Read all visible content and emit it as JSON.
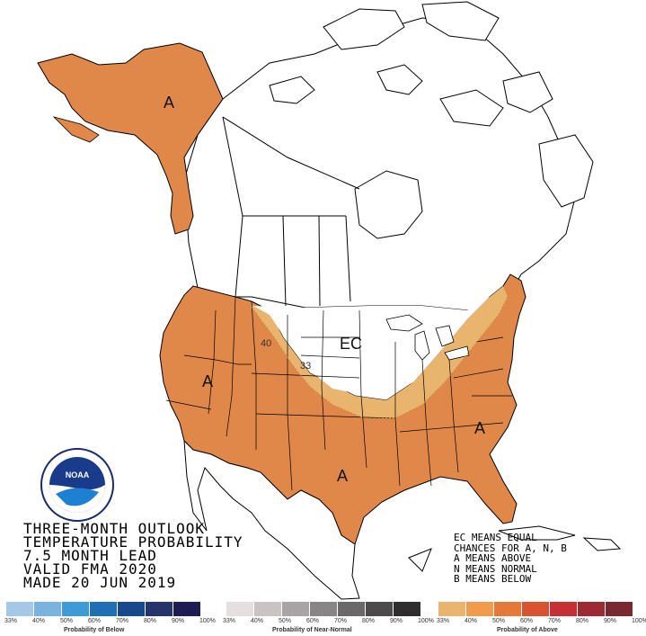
{
  "title_lines": [
    "THREE-MONTH OUTLOOK",
    "TEMPERATURE PROBABILITY",
    "7.5 MONTH LEAD",
    "VALID FMA 2020",
    "MADE 20 JUN 2019"
  ],
  "legend_lines": [
    "EC MEANS EQUAL",
    "CHANCES FOR A, N, B",
    "A MEANS ABOVE",
    "N MEANS NORMAL",
    "B MEANS BELOW"
  ],
  "map_labels": {
    "alaska": "A",
    "west": "A",
    "south": "A",
    "southeast": "A",
    "central": "EC",
    "contour_40": "40",
    "contour_33": "33"
  },
  "logo_text": "NOAA",
  "colorbars": [
    {
      "name": "Probability of Below",
      "ticks": [
        "33%",
        "40%",
        "50%",
        "60%",
        "70%",
        "80%",
        "90%",
        "100%"
      ],
      "colors": [
        "#a6c8e8",
        "#7bb3e0",
        "#3f9ad9",
        "#1f6fb5",
        "#17498c",
        "#26346e",
        "#1d1c55"
      ]
    },
    {
      "name": "Probability of Near-Normal",
      "ticks": [
        "33%",
        "40%",
        "50%",
        "60%",
        "70%",
        "80%",
        "90%",
        "100%"
      ],
      "colors": [
        "#e6dfe0",
        "#c9c3c4",
        "#a8a4a6",
        "#888586",
        "#6b6869",
        "#4c4a4b",
        "#2f2d2e"
      ]
    },
    {
      "name": "Probability of Above",
      "ticks": [
        "33%",
        "40%",
        "50%",
        "60%",
        "70%",
        "80%",
        "90%",
        "100%"
      ],
      "colors": [
        "#e8b46e",
        "#f39b4d",
        "#e4793a",
        "#d9542e",
        "#c62f34",
        "#9e2a34",
        "#7a2930"
      ]
    }
  ],
  "colors": {
    "above_33_40": "#e8b46e",
    "above_40_50": "#e0874a",
    "outline": "#000000"
  }
}
